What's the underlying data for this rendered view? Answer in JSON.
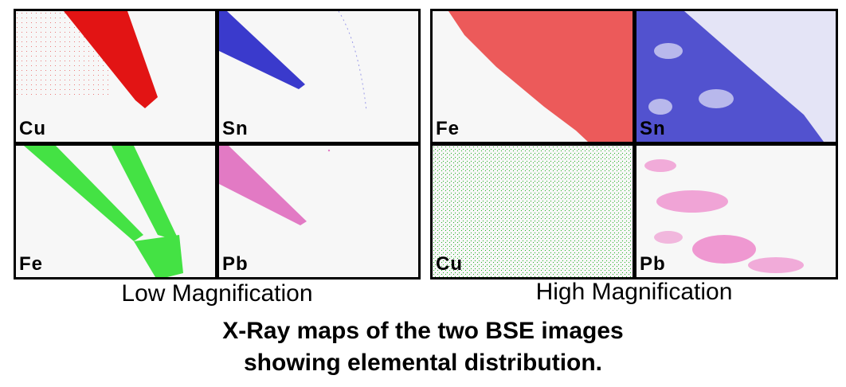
{
  "low_mag": {
    "caption": "Low Magnification",
    "maps": [
      {
        "element": "Cu",
        "color": "#e21414"
      },
      {
        "element": "Sn",
        "color": "#3a3acc"
      },
      {
        "element": "Fe",
        "color": "#44e244"
      },
      {
        "element": "Pb",
        "color": "#e27ac4"
      }
    ]
  },
  "high_mag": {
    "caption": "High Magnification",
    "maps": [
      {
        "element": "Fe",
        "color": "#ec5a5a"
      },
      {
        "element": "Sn",
        "color": "#3838c8"
      },
      {
        "element": "Cu",
        "color": "#20b020"
      },
      {
        "element": "Pb",
        "color": "#ec78c4"
      }
    ]
  },
  "title": {
    "line1": "X-Ray maps of the two BSE images",
    "line2": "showing elemental distribution."
  }
}
